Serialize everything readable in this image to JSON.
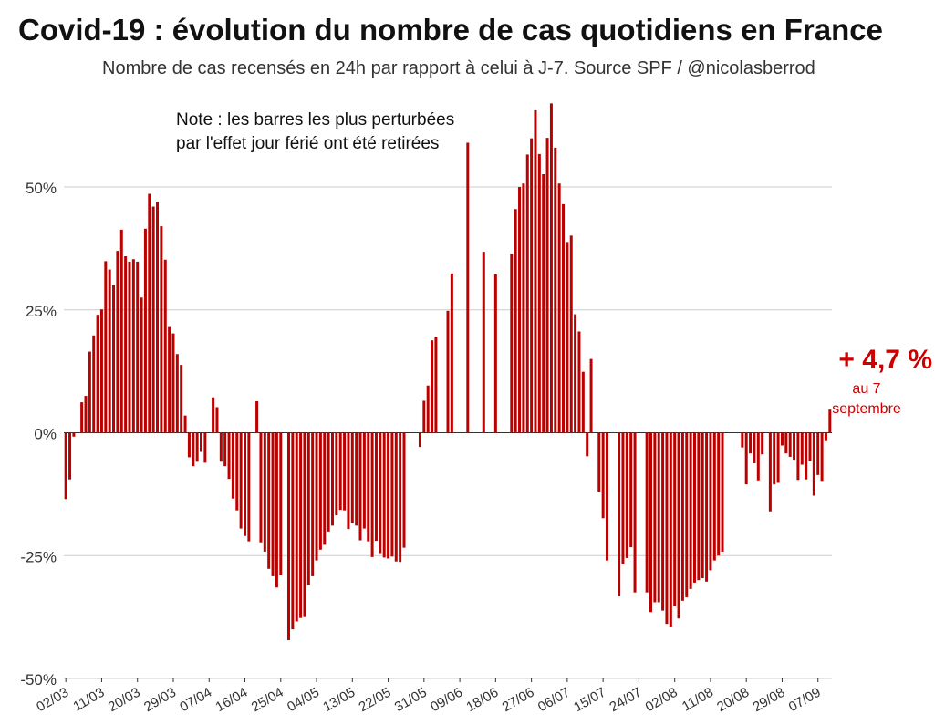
{
  "title": "Covid-19 : évolution du nombre de cas quotidiens en France",
  "subtitle": "Nombre de cas recensés en 24h par rapport à celui à J-7. Source SPF / @nicolasberrod",
  "note": {
    "line1": "Note : les barres les plus perturbées",
    "line2": "par l'effet jour férié ont été retirées"
  },
  "callout": {
    "value": "+ 4,7 %",
    "line1": "au 7",
    "line2": "septembre"
  },
  "colors": {
    "bar": "#bb0000",
    "accent": "#cc0000",
    "grid": "#cccccc",
    "axis": "#333333"
  },
  "chart_data": {
    "type": "bar",
    "title": "Covid-19 : évolution du nombre de cas quotidiens en France",
    "xlabel": "",
    "ylabel": "",
    "ylim": [
      -50,
      65
    ],
    "y_ticks": [
      {
        "value": 50,
        "label": "50%"
      },
      {
        "value": 25,
        "label": "25%"
      },
      {
        "value": 0,
        "label": "0%"
      },
      {
        "value": -25,
        "label": "-25%"
      },
      {
        "value": -50,
        "label": "-50%"
      }
    ],
    "x_tick_labels": [
      "02/03",
      "11/03",
      "20/03",
      "29/03",
      "07/04",
      "16/04",
      "25/04",
      "04/05",
      "13/05",
      "22/05",
      "31/05",
      "09/06",
      "18/06",
      "27/06",
      "06/07",
      "15/07",
      "24/07",
      "02/08",
      "11/08",
      "20/08",
      "29/08",
      "07/09"
    ],
    "x_tick_every": 9,
    "start_date": "02/03",
    "end_date": "07/09",
    "values": [
      -13.5,
      -9.5,
      -0.8,
      null,
      6.2,
      7.5,
      16.5,
      19.8,
      24,
      25.1,
      34.9,
      33.2,
      30,
      37,
      41.3,
      35.9,
      34.8,
      35.3,
      34.8,
      27.5,
      41.5,
      48.6,
      46,
      47,
      42,
      35.2,
      21.5,
      20.2,
      16,
      13.8,
      3.5,
      -5,
      -6.8,
      -5.9,
      -3.9,
      -6.1,
      null,
      7.2,
      5.2,
      -5.9,
      -6.8,
      -9.4,
      -13.4,
      -15.8,
      -19.5,
      -21,
      -22.1,
      null,
      6.4,
      -22.3,
      -24.2,
      -27.7,
      -29.2,
      -31.5,
      -29,
      null,
      -42.2,
      -40,
      -38.4,
      -37.7,
      -37.5,
      -31,
      -29.2,
      -26,
      -23.8,
      -22.8,
      -20.1,
      -18.9,
      -16.8,
      -15.7,
      -15.8,
      -19.6,
      -18.4,
      -18.9,
      -21.9,
      -19.5,
      -22.1,
      -25.3,
      -22,
      -24.5,
      -25.4,
      -25.6,
      -25.2,
      -26.2,
      -26.3,
      -23.4,
      null,
      null,
      null,
      -2.9,
      6.5,
      9.6,
      18.8,
      19.4,
      null,
      null,
      24.8,
      32.4,
      null,
      null,
      null,
      59,
      null,
      null,
      null,
      36.8,
      null,
      null,
      32.2,
      null,
      null,
      null,
      36.4,
      45.5,
      50,
      50.7,
      56.6,
      59.9,
      65.6,
      56.7,
      52.6,
      60,
      67,
      58,
      50.7,
      46.5,
      38.8,
      40.1,
      24.1,
      20.6,
      12.4,
      -4.8,
      15,
      null,
      -12,
      -17.4,
      -26,
      null,
      null,
      -33.2,
      -26.8,
      -25.5,
      -23.3,
      -32.5,
      null,
      null,
      -32.5,
      -36.5,
      -34.5,
      -34.5,
      -36.2,
      -38.9,
      -39.5,
      -35.3,
      -37.8,
      -34.2,
      -33.5,
      -31.8,
      -30.5,
      -30,
      -29.6,
      -30.3,
      -28,
      -26,
      -25,
      -24.2,
      null,
      null,
      null,
      null,
      -3,
      -10.5,
      -4.2,
      -6.2,
      -9.7,
      -4.4,
      null,
      -16,
      -10.5,
      -10.2,
      -2.6,
      -4.2,
      -4.9,
      -5.5,
      -9.6,
      -6.5,
      -9.5,
      -5.8,
      -12.8,
      -8.6,
      -9.8,
      -1.7,
      4.7
    ]
  }
}
